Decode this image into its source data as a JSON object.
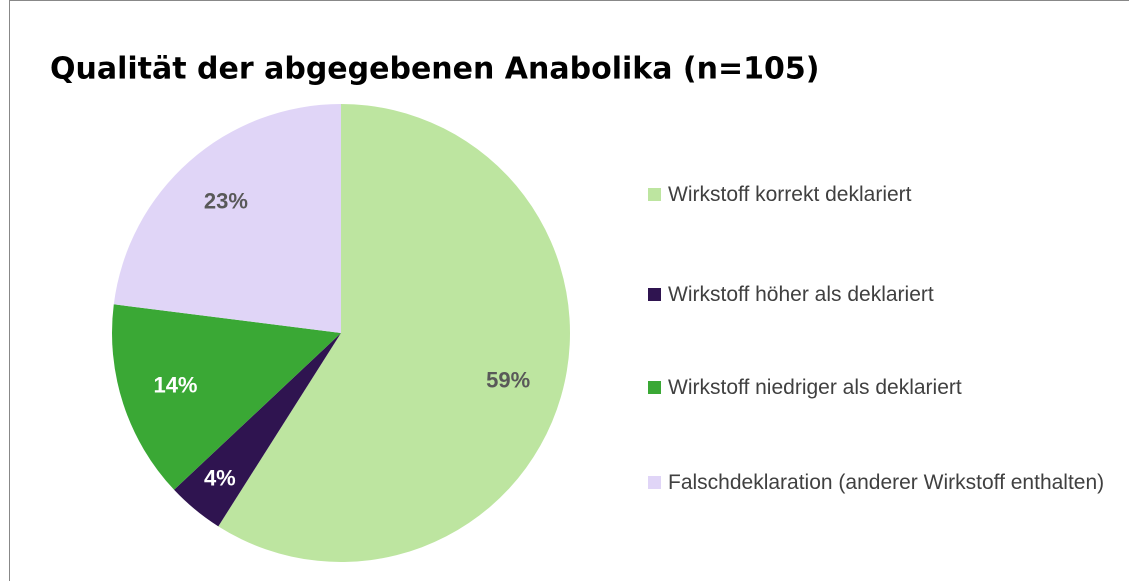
{
  "chart_data": {
    "type": "pie",
    "title": "Qualität der abgegebenen Anabolika (n=105)",
    "categories": [
      "Wirkstoff korrekt deklariert",
      "Wirkstoff höher als deklariert",
      "Wirkstoff niedriger als deklariert",
      "Falschdeklaration (anderer Wirkstoff enthalten)"
    ],
    "values": [
      59,
      4,
      14,
      23
    ],
    "value_labels": [
      "59%",
      "4%",
      "14%",
      "23%"
    ],
    "colors": [
      "#bde5a0",
      "#2f1450",
      "#3aa835",
      "#e0d5f7"
    ],
    "legend": "right"
  }
}
